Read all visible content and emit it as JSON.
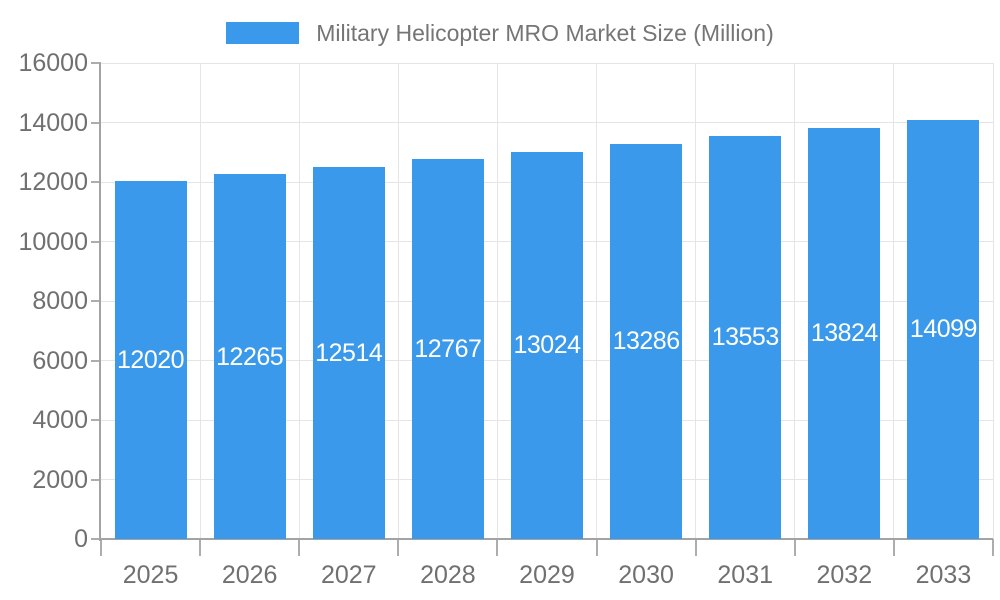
{
  "chart_data": {
    "type": "bar",
    "title": "Military Helicopter MRO Market Size (Million)",
    "legend_entries": [
      "Military Helicopter MRO Market Size (Million)"
    ],
    "legend_position": "top-center",
    "categories": [
      "2025",
      "2026",
      "2027",
      "2028",
      "2029",
      "2030",
      "2031",
      "2032",
      "2033"
    ],
    "values": [
      12020,
      12265,
      12514,
      12767,
      13024,
      13286,
      13553,
      13824,
      14099
    ],
    "value_labels": [
      "12020",
      "12265",
      "12514",
      "12767",
      "13024",
      "13286",
      "13553",
      "13824",
      "14099"
    ],
    "xlabel": "",
    "ylabel": "",
    "ylim": [
      0,
      16000
    ],
    "ytick_step": 2000,
    "ytick_labels": [
      "0",
      "2000",
      "4000",
      "6000",
      "8000",
      "10000",
      "12000",
      "14000",
      "16000"
    ],
    "grid": true,
    "value_labels_inside_bars": true
  },
  "colors": {
    "background": "#FFFFFF",
    "bar": "#3B99EC",
    "grid": "#E5E5E5",
    "axis": "#A3A3A3",
    "tick": "#ADADAD",
    "tick_text": "#707070",
    "legend_text": "#757575",
    "value_label": "#FFFFFF"
  }
}
